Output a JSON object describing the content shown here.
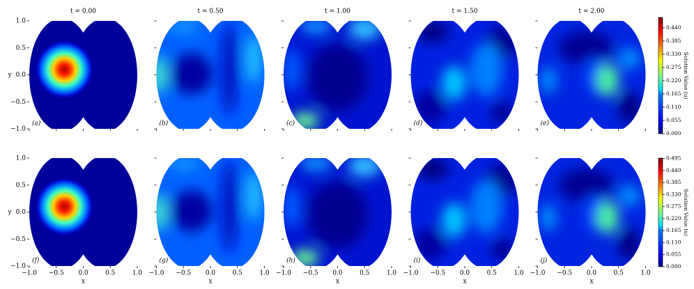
{
  "figure": {
    "titles": [
      "t = 0.00",
      "t = 0.50",
      "t = 1.00",
      "t = 1.50",
      "t = 2.00"
    ],
    "xlabel": "x",
    "ylabel": "y",
    "xlim": [
      -1,
      1
    ],
    "ylim": [
      -1,
      1
    ],
    "xticks": [
      {
        "value": -1,
        "label": "−1.0"
      },
      {
        "value": -0.5,
        "label": "−0.5"
      },
      {
        "value": 0,
        "label": "0.0"
      },
      {
        "value": 0.5,
        "label": "0.5"
      },
      {
        "value": 1,
        "label": "1.0"
      }
    ],
    "yticks": [
      {
        "value": -1,
        "label": "−1.0"
      },
      {
        "value": -0.5,
        "label": "−0.5"
      },
      {
        "value": 0,
        "label": "0.0"
      },
      {
        "value": 0.5,
        "label": "0.5"
      },
      {
        "value": 1,
        "label": "1.0"
      }
    ],
    "rows": [
      {
        "panel_labels": [
          "(a)",
          "(b)",
          "(c)",
          "(d)",
          "(e)"
        ],
        "colorbar": {
          "label": "Solution Value (u)",
          "lim": [
            0,
            0.483
          ],
          "ticks": [
            {
              "value": 0,
              "label": "0.000"
            },
            {
              "value": 0.055,
              "label": "0.055"
            },
            {
              "value": 0.11,
              "label": "0.110"
            },
            {
              "value": 0.165,
              "label": "0.165"
            },
            {
              "value": 0.22,
              "label": "0.220"
            },
            {
              "value": 0.275,
              "label": "0.275"
            },
            {
              "value": 0.33,
              "label": "0.330"
            },
            {
              "value": 0.385,
              "label": "0.385"
            },
            {
              "value": 0.44,
              "label": "0.440"
            }
          ]
        }
      },
      {
        "panel_labels": [
          "(f)",
          "(g)",
          "(h)",
          "(i)",
          "(j)"
        ],
        "colorbar": {
          "label": "Solution Value (u)",
          "lim": [
            0,
            0.497
          ],
          "ticks": [
            {
              "value": 0,
              "label": "0.000"
            },
            {
              "value": 0.055,
              "label": "0.055"
            },
            {
              "value": 0.11,
              "label": "0.110"
            },
            {
              "value": 0.165,
              "label": "0.165"
            },
            {
              "value": 0.22,
              "label": "0.220"
            },
            {
              "value": 0.275,
              "label": "0.275"
            },
            {
              "value": 0.33,
              "label": "0.330"
            },
            {
              "value": 0.385,
              "label": "0.385"
            },
            {
              "value": 0.44,
              "label": "0.440"
            },
            {
              "value": 0.495,
              "label": "0.495"
            }
          ]
        }
      }
    ]
  }
}
